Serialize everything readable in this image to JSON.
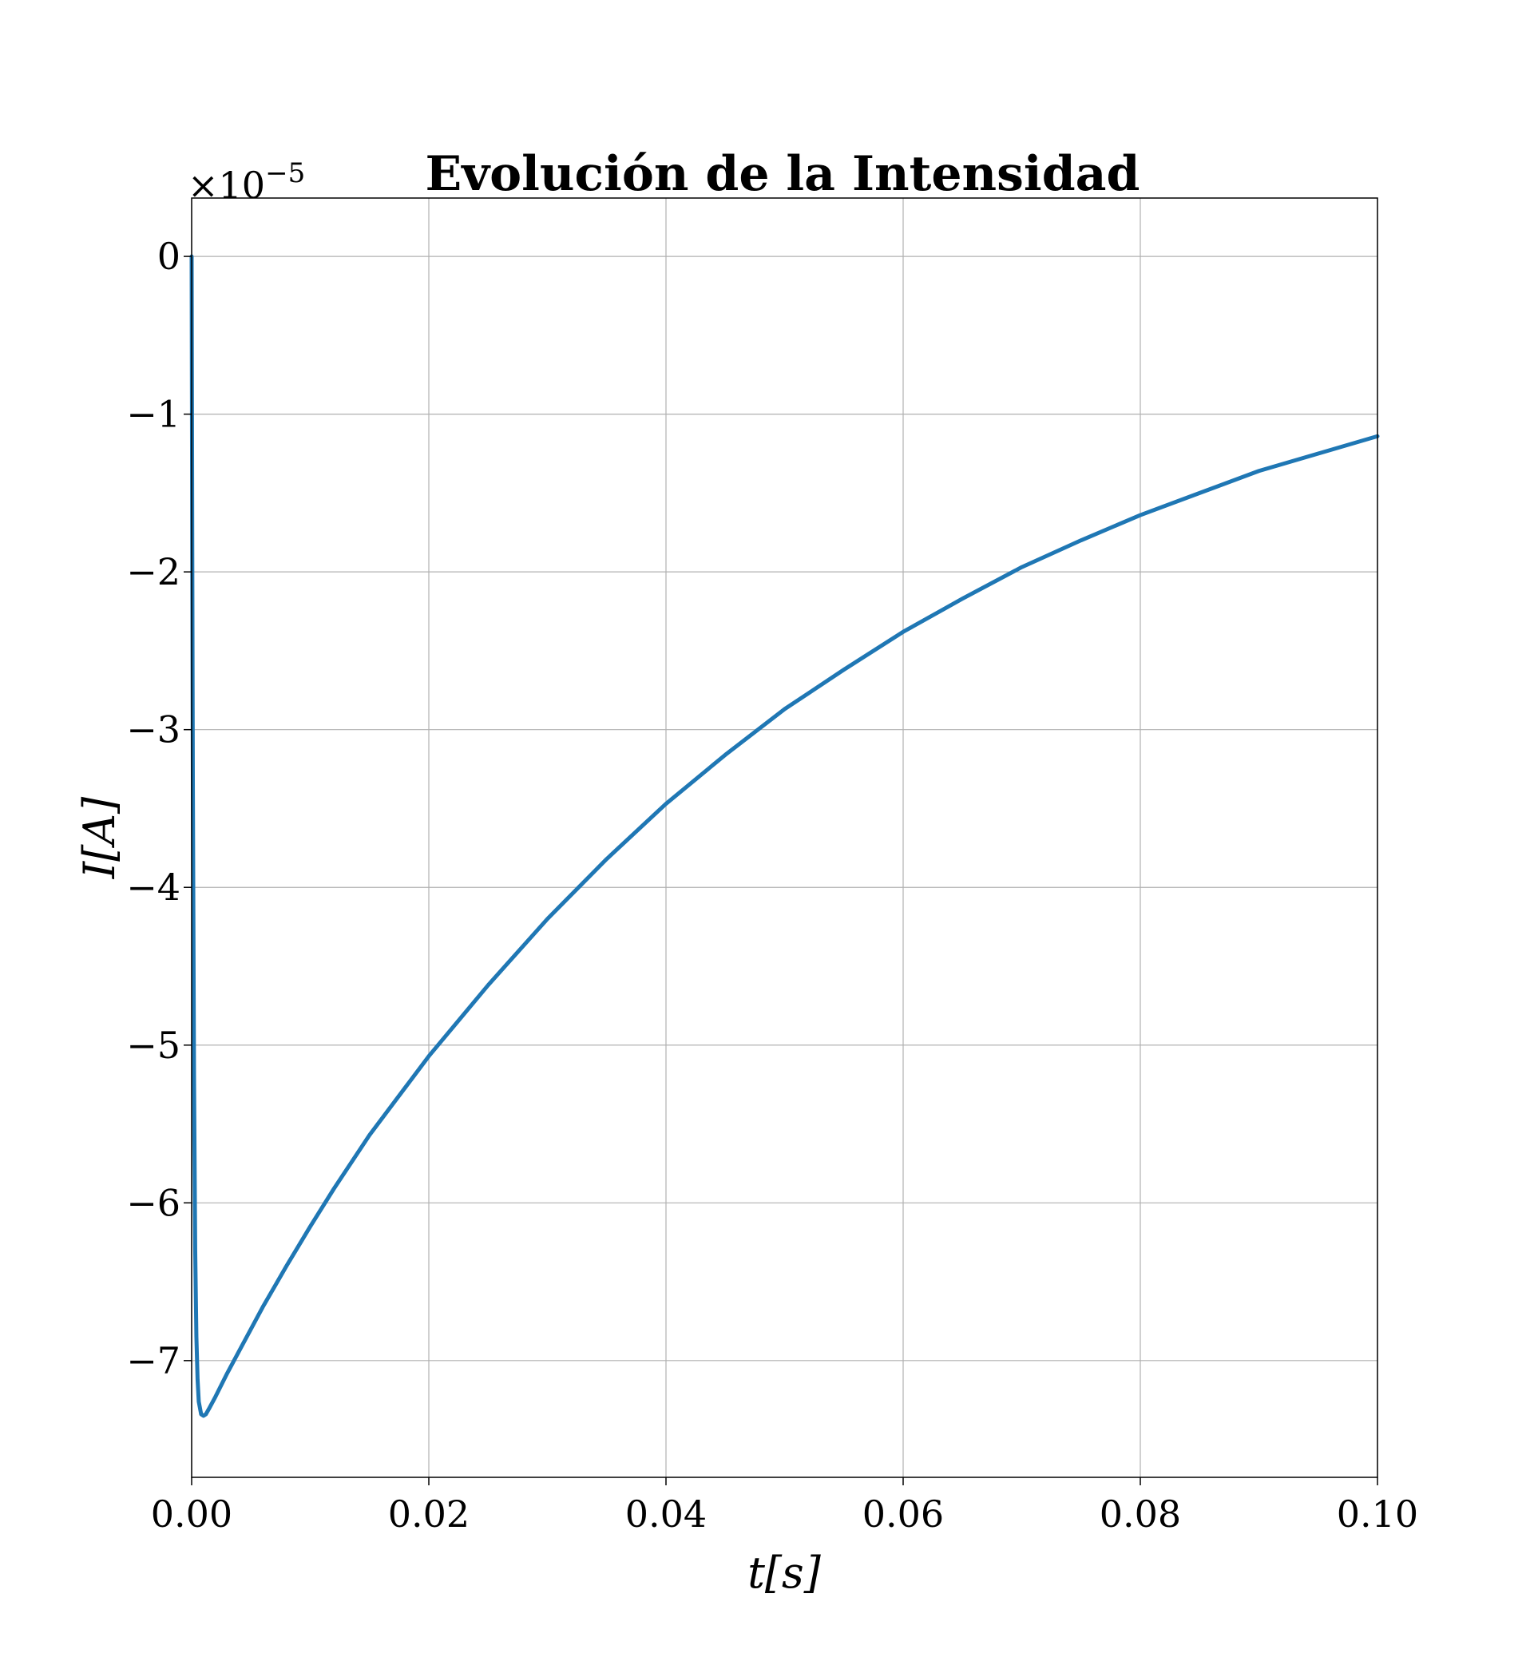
{
  "chart_data": {
    "type": "line",
    "title": "Evolución de la Intensidad",
    "xlabel": "t[s]",
    "ylabel": "I[A]",
    "y_multiplier_label": "×10",
    "y_multiplier_exponent": "−5",
    "xlim": [
      0.0,
      0.1
    ],
    "ylim": [
      -7.74,
      0.37
    ],
    "x_ticks": [
      0.0,
      0.02,
      0.04,
      0.06,
      0.08,
      0.1
    ],
    "x_tick_labels": [
      "0.00",
      "0.02",
      "0.04",
      "0.06",
      "0.08",
      "0.10"
    ],
    "y_ticks": [
      0,
      -1,
      -2,
      -3,
      -4,
      -5,
      -6,
      -7
    ],
    "y_tick_labels": [
      "0",
      "−1",
      "−2",
      "−3",
      "−4",
      "−5",
      "−6",
      "−7"
    ],
    "grid": true,
    "series": [
      {
        "color": "#1f77b4",
        "x": [
          0.0,
          5e-05,
          0.0001,
          0.0002,
          0.0003,
          0.0004,
          0.0005,
          0.0006,
          0.0008,
          0.001,
          0.0012,
          0.0015,
          0.002,
          0.003,
          0.004,
          0.005,
          0.006,
          0.007,
          0.008,
          0.01,
          0.012,
          0.015,
          0.02,
          0.025,
          0.03,
          0.035,
          0.04,
          0.045,
          0.05,
          0.055,
          0.06,
          0.065,
          0.07,
          0.075,
          0.08,
          0.085,
          0.09,
          0.095,
          0.1
        ],
        "y": [
          0.0,
          -1.8,
          -3.3,
          -5.2,
          -6.3,
          -6.85,
          -7.12,
          -7.26,
          -7.34,
          -7.35,
          -7.34,
          -7.3,
          -7.23,
          -7.08,
          -6.94,
          -6.8,
          -6.66,
          -6.53,
          -6.4,
          -6.15,
          -5.91,
          -5.57,
          -5.07,
          -4.62,
          -4.2,
          -3.82,
          -3.47,
          -3.16,
          -2.87,
          -2.62,
          -2.38,
          -2.17,
          -1.97,
          -1.8,
          -1.64,
          -1.5,
          -1.36,
          -1.25,
          -1.14
        ]
      }
    ]
  }
}
